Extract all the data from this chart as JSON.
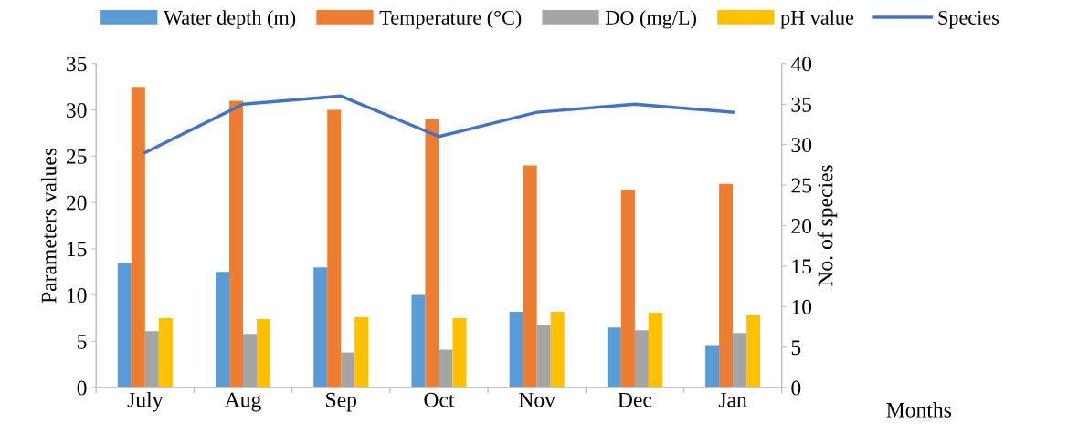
{
  "chart_data": {
    "type": "bar",
    "xlabel": "Months",
    "ylabel": "Parameters values",
    "y2label": "No. of species",
    "categories": [
      "July",
      "Aug",
      "Sep",
      "Oct",
      "Nov",
      "Dec",
      "Jan"
    ],
    "series": [
      {
        "name": "Water depth (m)",
        "color": "#5b9bd5",
        "values": [
          13.5,
          12.5,
          13,
          10,
          8.2,
          6.5,
          4.5
        ]
      },
      {
        "name": "Temperature (°C)",
        "color": "#ed7d31",
        "values": [
          32.5,
          31,
          30,
          29,
          24,
          21.4,
          22
        ]
      },
      {
        "name": "DO (mg/L)",
        "color": "#a5a5a5",
        "values": [
          6.1,
          5.8,
          3.8,
          4.1,
          6.8,
          6.2,
          5.9
        ]
      },
      {
        "name": "pH value",
        "color": "#ffc000",
        "values": [
          7.5,
          7.4,
          7.6,
          7.5,
          8.2,
          8.1,
          7.8
        ]
      },
      {
        "name": "Species",
        "color": "#4472c4",
        "type": "line",
        "axis": "y2",
        "values": [
          29,
          35,
          36,
          31,
          34,
          35,
          34
        ]
      }
    ],
    "ylim": [
      0,
      35
    ],
    "yticks": [
      0,
      5,
      10,
      15,
      20,
      25,
      30,
      35
    ],
    "y2lim": [
      0,
      40
    ],
    "y2ticks": [
      0,
      5,
      10,
      15,
      20,
      25,
      30,
      35,
      40
    ],
    "grid": false,
    "legend": "top",
    "marker": "none",
    "line_style": "solid"
  }
}
